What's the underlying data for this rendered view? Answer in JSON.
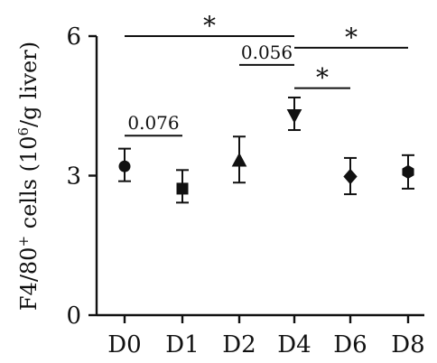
{
  "chart_data": {
    "type": "scatter",
    "title": "",
    "xlabel": "",
    "ylabel": "F4/80",
    "ylabel_superscript": "+",
    "ylabel_rest": " cells (10",
    "ylabel_exp": "6",
    "ylabel_end": "/g liver)",
    "categories": [
      "D0",
      "D1",
      "D2",
      "D4",
      "D6",
      "D8"
    ],
    "markers": [
      "circle",
      "square",
      "triangle-up",
      "triangle-down",
      "diamond",
      "hexagon"
    ],
    "series": [
      {
        "values": [
          3.2,
          2.72,
          3.32,
          4.3,
          2.98,
          3.08
        ],
        "err_low": [
          2.88,
          2.42,
          2.85,
          3.98,
          2.6,
          2.72
        ],
        "err_high": [
          3.58,
          3.12,
          3.84,
          4.68,
          3.38,
          3.44
        ]
      }
    ],
    "ylim": [
      0,
      6
    ],
    "yticks": [
      "0",
      "3",
      "6"
    ],
    "grid": false,
    "legend": "none",
    "annotations": [
      {
        "from": "D0",
        "to": "D1",
        "label": "0.076",
        "level": 3.86
      },
      {
        "from": "D0",
        "to": "D4",
        "label": "*",
        "level": 6.0
      },
      {
        "from": "D2",
        "to": "D4",
        "label": "0.056",
        "level": 5.38
      },
      {
        "from": "D4",
        "to": "D8",
        "label": "*",
        "level": 5.75
      },
      {
        "from": "D4",
        "to": "D6",
        "label": "*",
        "level": 4.88
      }
    ]
  }
}
